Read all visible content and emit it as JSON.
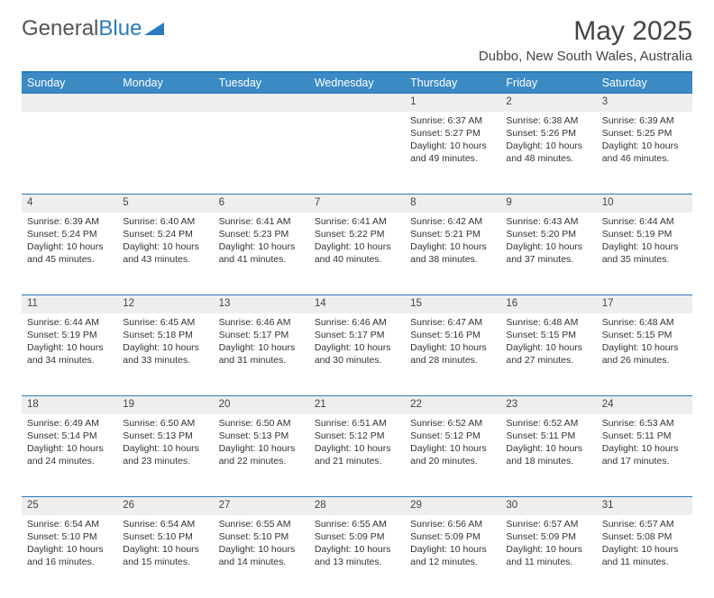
{
  "logo": {
    "text1": "General",
    "text2": "Blue"
  },
  "title": "May 2025",
  "location": "Dubbo, New South Wales, Australia",
  "weekdays": [
    "Sunday",
    "Monday",
    "Tuesday",
    "Wednesday",
    "Thursday",
    "Friday",
    "Saturday"
  ],
  "colors": {
    "header_bg": "#3b8ac4",
    "border": "#2b7bbf",
    "daynum_bg": "#eeeeee"
  },
  "weeks": [
    {
      "nums": [
        "",
        "",
        "",
        "",
        "1",
        "2",
        "3"
      ],
      "cells": [
        {},
        {},
        {},
        {},
        {
          "sunrise": "Sunrise: 6:37 AM",
          "sunset": "Sunset: 5:27 PM",
          "day": "Daylight: 10 hours and 49 minutes."
        },
        {
          "sunrise": "Sunrise: 6:38 AM",
          "sunset": "Sunset: 5:26 PM",
          "day": "Daylight: 10 hours and 48 minutes."
        },
        {
          "sunrise": "Sunrise: 6:39 AM",
          "sunset": "Sunset: 5:25 PM",
          "day": "Daylight: 10 hours and 46 minutes."
        }
      ]
    },
    {
      "nums": [
        "4",
        "5",
        "6",
        "7",
        "8",
        "9",
        "10"
      ],
      "cells": [
        {
          "sunrise": "Sunrise: 6:39 AM",
          "sunset": "Sunset: 5:24 PM",
          "day": "Daylight: 10 hours and 45 minutes."
        },
        {
          "sunrise": "Sunrise: 6:40 AM",
          "sunset": "Sunset: 5:24 PM",
          "day": "Daylight: 10 hours and 43 minutes."
        },
        {
          "sunrise": "Sunrise: 6:41 AM",
          "sunset": "Sunset: 5:23 PM",
          "day": "Daylight: 10 hours and 41 minutes."
        },
        {
          "sunrise": "Sunrise: 6:41 AM",
          "sunset": "Sunset: 5:22 PM",
          "day": "Daylight: 10 hours and 40 minutes."
        },
        {
          "sunrise": "Sunrise: 6:42 AM",
          "sunset": "Sunset: 5:21 PM",
          "day": "Daylight: 10 hours and 38 minutes."
        },
        {
          "sunrise": "Sunrise: 6:43 AM",
          "sunset": "Sunset: 5:20 PM",
          "day": "Daylight: 10 hours and 37 minutes."
        },
        {
          "sunrise": "Sunrise: 6:44 AM",
          "sunset": "Sunset: 5:19 PM",
          "day": "Daylight: 10 hours and 35 minutes."
        }
      ]
    },
    {
      "nums": [
        "11",
        "12",
        "13",
        "14",
        "15",
        "16",
        "17"
      ],
      "cells": [
        {
          "sunrise": "Sunrise: 6:44 AM",
          "sunset": "Sunset: 5:19 PM",
          "day": "Daylight: 10 hours and 34 minutes."
        },
        {
          "sunrise": "Sunrise: 6:45 AM",
          "sunset": "Sunset: 5:18 PM",
          "day": "Daylight: 10 hours and 33 minutes."
        },
        {
          "sunrise": "Sunrise: 6:46 AM",
          "sunset": "Sunset: 5:17 PM",
          "day": "Daylight: 10 hours and 31 minutes."
        },
        {
          "sunrise": "Sunrise: 6:46 AM",
          "sunset": "Sunset: 5:17 PM",
          "day": "Daylight: 10 hours and 30 minutes."
        },
        {
          "sunrise": "Sunrise: 6:47 AM",
          "sunset": "Sunset: 5:16 PM",
          "day": "Daylight: 10 hours and 28 minutes."
        },
        {
          "sunrise": "Sunrise: 6:48 AM",
          "sunset": "Sunset: 5:15 PM",
          "day": "Daylight: 10 hours and 27 minutes."
        },
        {
          "sunrise": "Sunrise: 6:48 AM",
          "sunset": "Sunset: 5:15 PM",
          "day": "Daylight: 10 hours and 26 minutes."
        }
      ]
    },
    {
      "nums": [
        "18",
        "19",
        "20",
        "21",
        "22",
        "23",
        "24"
      ],
      "cells": [
        {
          "sunrise": "Sunrise: 6:49 AM",
          "sunset": "Sunset: 5:14 PM",
          "day": "Daylight: 10 hours and 24 minutes."
        },
        {
          "sunrise": "Sunrise: 6:50 AM",
          "sunset": "Sunset: 5:13 PM",
          "day": "Daylight: 10 hours and 23 minutes."
        },
        {
          "sunrise": "Sunrise: 6:50 AM",
          "sunset": "Sunset: 5:13 PM",
          "day": "Daylight: 10 hours and 22 minutes."
        },
        {
          "sunrise": "Sunrise: 6:51 AM",
          "sunset": "Sunset: 5:12 PM",
          "day": "Daylight: 10 hours and 21 minutes."
        },
        {
          "sunrise": "Sunrise: 6:52 AM",
          "sunset": "Sunset: 5:12 PM",
          "day": "Daylight: 10 hours and 20 minutes."
        },
        {
          "sunrise": "Sunrise: 6:52 AM",
          "sunset": "Sunset: 5:11 PM",
          "day": "Daylight: 10 hours and 18 minutes."
        },
        {
          "sunrise": "Sunrise: 6:53 AM",
          "sunset": "Sunset: 5:11 PM",
          "day": "Daylight: 10 hours and 17 minutes."
        }
      ]
    },
    {
      "nums": [
        "25",
        "26",
        "27",
        "28",
        "29",
        "30",
        "31"
      ],
      "cells": [
        {
          "sunrise": "Sunrise: 6:54 AM",
          "sunset": "Sunset: 5:10 PM",
          "day": "Daylight: 10 hours and 16 minutes."
        },
        {
          "sunrise": "Sunrise: 6:54 AM",
          "sunset": "Sunset: 5:10 PM",
          "day": "Daylight: 10 hours and 15 minutes."
        },
        {
          "sunrise": "Sunrise: 6:55 AM",
          "sunset": "Sunset: 5:10 PM",
          "day": "Daylight: 10 hours and 14 minutes."
        },
        {
          "sunrise": "Sunrise: 6:55 AM",
          "sunset": "Sunset: 5:09 PM",
          "day": "Daylight: 10 hours and 13 minutes."
        },
        {
          "sunrise": "Sunrise: 6:56 AM",
          "sunset": "Sunset: 5:09 PM",
          "day": "Daylight: 10 hours and 12 minutes."
        },
        {
          "sunrise": "Sunrise: 6:57 AM",
          "sunset": "Sunset: 5:09 PM",
          "day": "Daylight: 10 hours and 11 minutes."
        },
        {
          "sunrise": "Sunrise: 6:57 AM",
          "sunset": "Sunset: 5:08 PM",
          "day": "Daylight: 10 hours and 11 minutes."
        }
      ]
    }
  ]
}
